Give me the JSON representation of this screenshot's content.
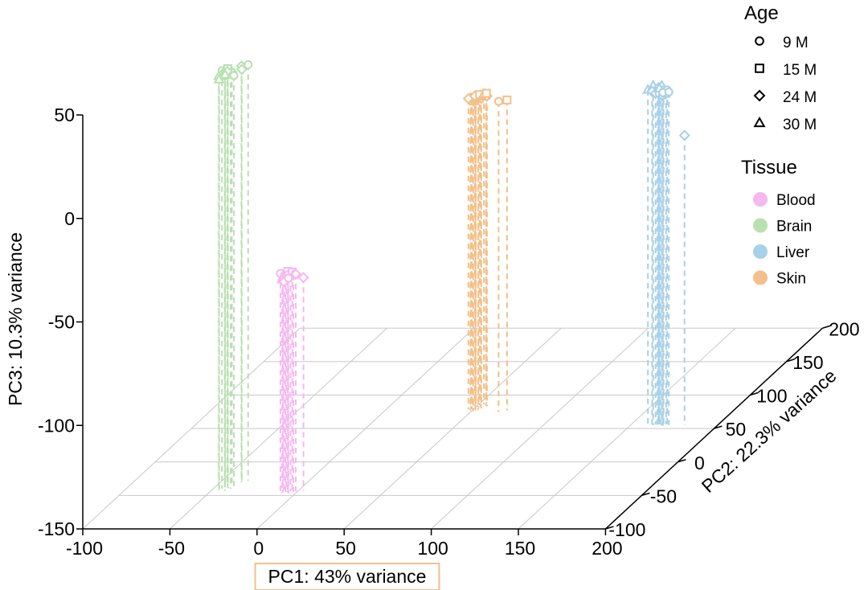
{
  "chart_data": {
    "type": "scatter",
    "projection": "3d",
    "x_axis": {
      "label": "PC1: 43% variance",
      "range": [
        -100,
        200
      ],
      "ticks": [
        -100,
        -50,
        0,
        50,
        100,
        150,
        200
      ],
      "tick_labels": [
        "-100",
        "-50",
        "0",
        "50",
        "100",
        "150",
        "200"
      ]
    },
    "y_axis": {
      "label": "PC2: 22.3% variance",
      "range": [
        -100,
        200
      ],
      "ticks": [
        -100,
        -50,
        0,
        50,
        100,
        150,
        200
      ],
      "tick_labels": [
        "-100",
        "-50",
        "0",
        "50",
        "100",
        "150",
        "200"
      ]
    },
    "z_axis": {
      "label": "PC3: 10.3% variance",
      "range": [
        -150,
        50
      ],
      "ticks": [
        -150,
        -100,
        -50,
        0,
        50
      ],
      "tick_labels": [
        "-150",
        "-100",
        "-50",
        "0",
        "50"
      ]
    },
    "drop_lines": true,
    "legend": {
      "position": "right",
      "age_title": "Age",
      "age": [
        {
          "label": "9 M",
          "shape": "circle"
        },
        {
          "label": "15 M",
          "shape": "square"
        },
        {
          "label": "24 M",
          "shape": "diamond"
        },
        {
          "label": "30 M",
          "shape": "triangle"
        }
      ],
      "tissue_title": "Tissue",
      "tissue": [
        {
          "label": "Blood",
          "color": "#f5b8f0"
        },
        {
          "label": "Brain",
          "color": "#b8e0b0"
        },
        {
          "label": "Liver",
          "color": "#a8d0e6"
        },
        {
          "label": "Skin",
          "color": "#f2c08a"
        }
      ]
    },
    "series": [
      {
        "name": "Brain",
        "color": "#b8e0b0",
        "points": [
          [
            -45,
            -40,
            52,
            "circle"
          ],
          [
            -44,
            -38,
            51,
            "diamond"
          ],
          [
            -46,
            -42,
            50,
            "triangle"
          ],
          [
            -43,
            -37,
            52,
            "square"
          ],
          [
            -42,
            -39,
            51,
            "circle"
          ],
          [
            -41,
            -36,
            50,
            "diamond"
          ],
          [
            -45,
            -44,
            49,
            "triangle"
          ],
          [
            -43,
            -41,
            50,
            "circle"
          ],
          [
            -40,
            -40,
            51,
            "square"
          ],
          [
            -44,
            -35,
            50,
            "diamond"
          ],
          [
            -39,
            -38,
            49,
            "circle"
          ],
          [
            -42,
            -43,
            51,
            "triangle"
          ],
          [
            -38,
            -30,
            51,
            "diamond"
          ],
          [
            -35,
            -28,
            51,
            "circle"
          ],
          [
            -37,
            -32,
            50,
            "diamond"
          ]
        ]
      },
      {
        "name": "Blood",
        "color": "#f5b8f0",
        "points": [
          [
            -9,
            -46,
            -44,
            "circle"
          ],
          [
            -7,
            -44,
            -45,
            "diamond"
          ],
          [
            -8,
            -45,
            -46,
            "triangle"
          ],
          [
            -6,
            -43,
            -44,
            "square"
          ],
          [
            -5,
            -45,
            -45,
            "circle"
          ],
          [
            -4,
            -44,
            -46,
            "diamond"
          ],
          [
            -8,
            -46,
            -47,
            "triangle"
          ],
          [
            -6,
            -45,
            -47,
            "circle"
          ],
          [
            -3,
            -44,
            -44,
            "square"
          ],
          [
            -2,
            -45,
            -45,
            "triangle"
          ],
          [
            -7,
            -46,
            -48,
            "diamond"
          ],
          [
            -4,
            -47,
            -46,
            "circle"
          ],
          [
            -1,
            -44,
            -45,
            "diamond"
          ],
          [
            3,
            -43,
            -47,
            "diamond"
          ]
        ]
      },
      {
        "name": "Skin",
        "color": "#f2c08a",
        "points": [
          [
            49,
            77,
            0,
            "circle"
          ],
          [
            50,
            78,
            0,
            "triangle"
          ],
          [
            51,
            76,
            0,
            "square"
          ],
          [
            52,
            77,
            0,
            "diamond"
          ],
          [
            48,
            80,
            0,
            "triangle"
          ],
          [
            49,
            79,
            0,
            "diamond"
          ],
          [
            51,
            79,
            0,
            "circle"
          ],
          [
            53,
            78,
            0,
            "triangle"
          ],
          [
            52,
            81,
            0,
            "square"
          ],
          [
            50,
            82,
            0,
            "diamond"
          ],
          [
            48,
            81,
            0,
            "circle"
          ],
          [
            54,
            80,
            0,
            "diamond"
          ],
          [
            53,
            82,
            0,
            "triangle"
          ],
          [
            47,
            79,
            0,
            "diamond"
          ],
          [
            55,
            84,
            0,
            "square"
          ],
          [
            52,
            84,
            0,
            "triangle"
          ],
          [
            49,
            83,
            0,
            "diamond"
          ],
          [
            51,
            85,
            0,
            "square"
          ],
          [
            56,
            83,
            0,
            "diamond"
          ],
          [
            53,
            86,
            0,
            "triangle"
          ],
          [
            54,
            87,
            0,
            "square"
          ],
          [
            66,
            75,
            0,
            "circle"
          ],
          [
            70,
            77,
            0,
            "square"
          ]
        ]
      },
      {
        "name": "Liver",
        "color": "#a8d0e6",
        "points": [
          [
            160,
            55,
            12,
            "triangle"
          ],
          [
            163,
            55,
            14,
            "triangle"
          ],
          [
            166,
            55,
            13,
            "diamond"
          ],
          [
            168,
            55,
            14,
            "triangle"
          ],
          [
            165,
            56,
            11,
            "circle"
          ],
          [
            167,
            56,
            11,
            "square"
          ],
          [
            169,
            55,
            12,
            "circle"
          ],
          [
            162,
            56,
            11,
            "diamond"
          ],
          [
            164,
            56,
            10,
            "diamond"
          ],
          [
            166,
            56,
            10,
            "circle"
          ],
          [
            168,
            56,
            9,
            "circle"
          ],
          [
            170,
            56,
            10,
            "square"
          ],
          [
            171,
            55,
            12,
            "circle"
          ],
          [
            167,
            54,
            13,
            "triangle"
          ],
          [
            169,
            54,
            11,
            "circle"
          ],
          [
            172,
            55,
            11,
            "circle"
          ],
          [
            181,
            55,
            -10,
            "diamond"
          ]
        ]
      }
    ]
  }
}
